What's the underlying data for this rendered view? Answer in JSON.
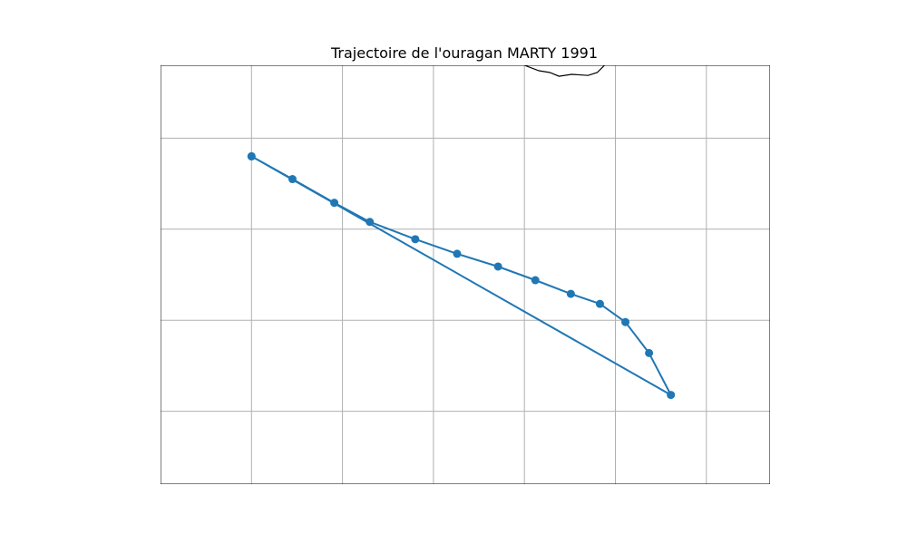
{
  "chart_data": {
    "type": "line",
    "title": "Trajectoire de l'ouragan MARTY 1991",
    "xlabel": "",
    "ylabel": "",
    "xlim": [
      -124.0,
      -107.25
    ],
    "ylim": [
      13.5,
      25.0
    ],
    "grid": true,
    "x_gridlines": [
      -121.5,
      -119.0,
      -116.5,
      -114.0,
      -111.5,
      -109.0
    ],
    "y_gridlines": [
      15.5,
      18.0,
      20.5,
      23.0
    ],
    "series": [
      {
        "name": "MARTY 1991",
        "color": "#1f77b4",
        "lon": [
          -121.5,
          -120.375,
          -119.225,
          -118.25,
          -117.0,
          -115.85,
          -114.725,
          -113.7,
          -112.725,
          -111.925,
          -111.225,
          -110.575,
          -109.975,
          -121.5
        ],
        "lat": [
          22.5,
          21.875,
          21.225,
          20.7,
          20.225,
          19.825,
          19.475,
          19.1,
          18.725,
          18.45,
          17.95,
          17.1,
          15.95,
          22.5
        ]
      }
    ],
    "coastline": {
      "lon": [
        -114.0,
        -113.6,
        -113.3,
        -113.05,
        -112.7,
        -112.25,
        -112.0,
        -111.8
      ],
      "lat": [
        25.0,
        24.85,
        24.8,
        24.7,
        24.75,
        24.72,
        24.8,
        25.0
      ]
    }
  }
}
